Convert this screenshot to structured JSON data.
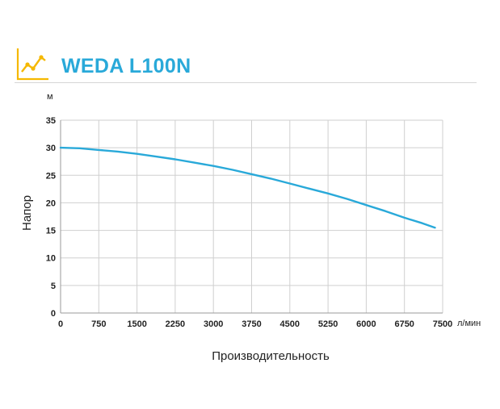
{
  "header": {
    "title": "WEDA L100N",
    "icon": "rising-chart-icon",
    "accent_color": "#f5b800",
    "title_color": "#29a9d9"
  },
  "chart_data": {
    "type": "line",
    "title": "WEDA L100N",
    "xlabel": "Производительность",
    "ylabel": "Напор",
    "x_unit": "л/мин",
    "y_unit": "м",
    "xlim": [
      0,
      7500
    ],
    "ylim": [
      0,
      35
    ],
    "x_ticks": [
      0,
      750,
      1500,
      2250,
      3000,
      3750,
      4500,
      5250,
      6000,
      6750,
      7500
    ],
    "y_ticks": [
      0,
      5,
      10,
      15,
      20,
      25,
      30,
      35
    ],
    "grid": true,
    "line_color": "#29a9d9",
    "series": [
      {
        "x": [
          0,
          375,
          750,
          1125,
          1500,
          1875,
          2250,
          2625,
          3000,
          3375,
          3750,
          4125,
          4500,
          4875,
          5250,
          5625,
          6000,
          6375,
          6750,
          7100,
          7350
        ],
        "y": [
          30.0,
          29.9,
          29.6,
          29.3,
          28.9,
          28.4,
          27.9,
          27.3,
          26.7,
          26.0,
          25.2,
          24.4,
          23.5,
          22.6,
          21.7,
          20.7,
          19.6,
          18.5,
          17.3,
          16.3,
          15.5
        ]
      }
    ]
  }
}
